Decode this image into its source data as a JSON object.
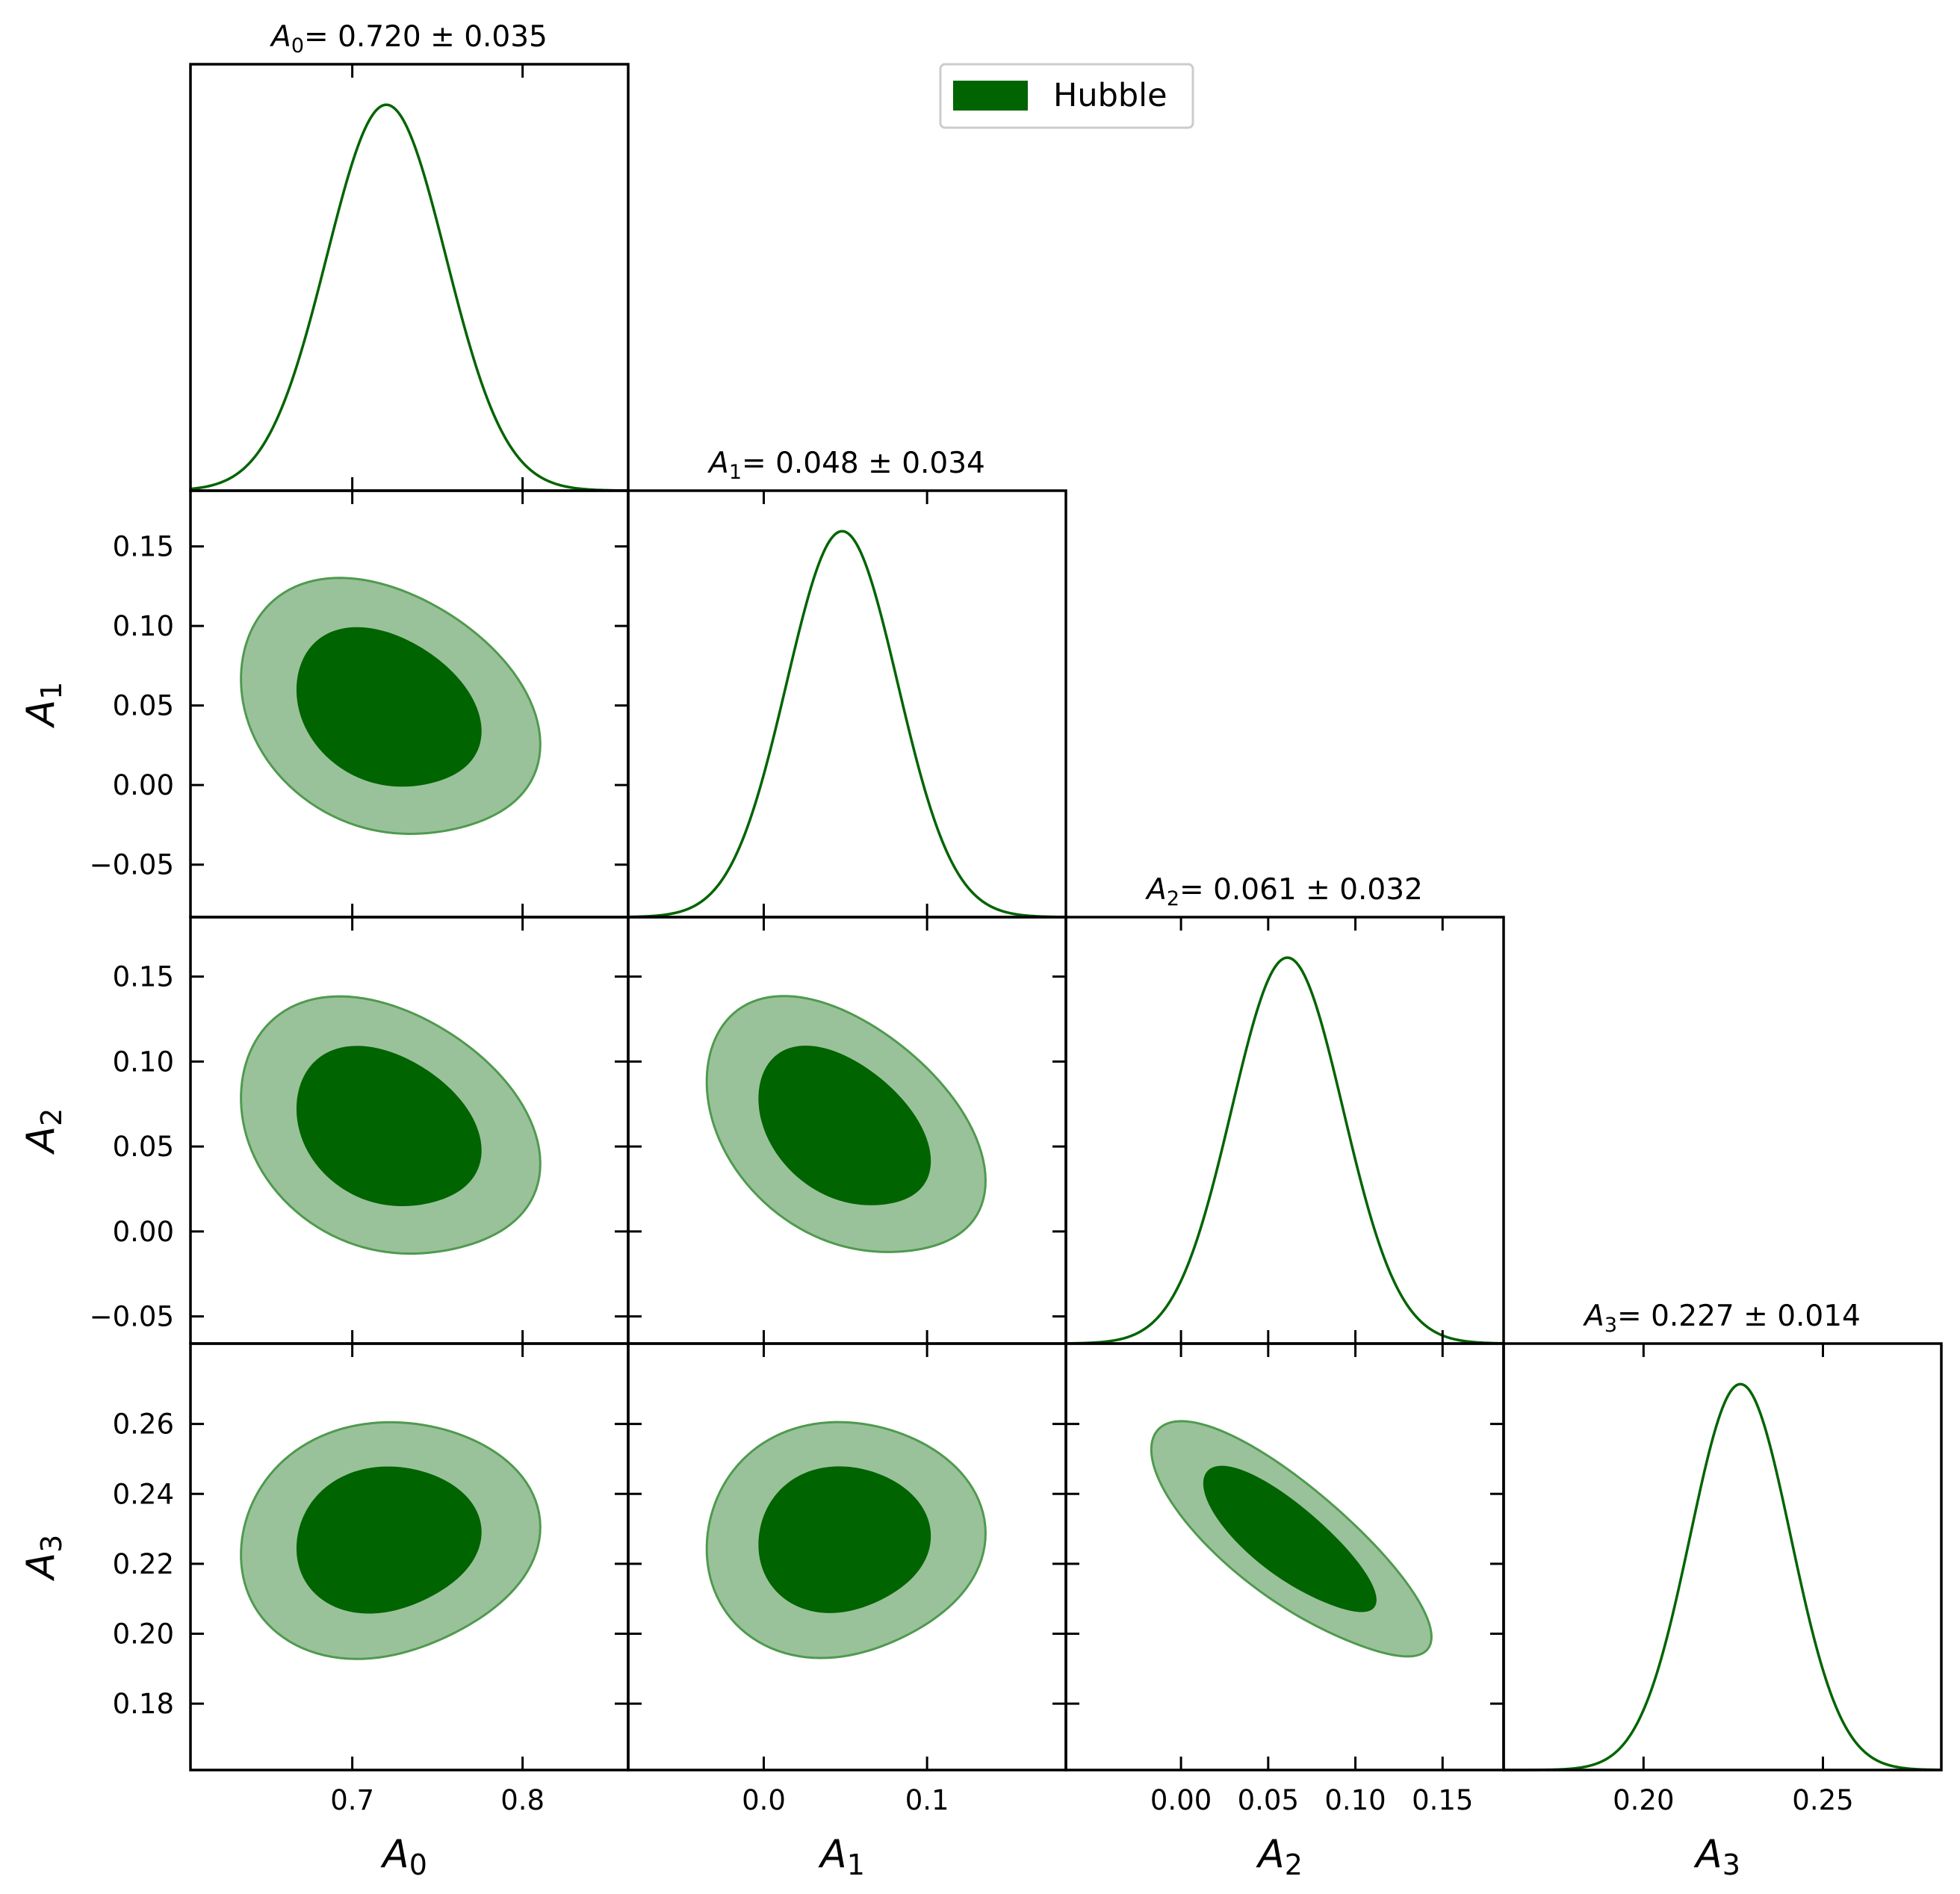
{
  "chart_data": {
    "type": "corner",
    "legend": {
      "label": "Hubble",
      "placement": "top-right",
      "fill_color": "#006400"
    },
    "colors": {
      "line": "#006400",
      "inner_fill": "#006400",
      "outer_fill": "#9ac29a",
      "contour_edge": "#4f9a4f",
      "frame": "#000000"
    },
    "parameters": [
      {
        "name": "A",
        "sub": "0",
        "mean": 0.72,
        "sigma": 0.035,
        "range": [
          0.605,
          0.862
        ],
        "ticks": [
          0.7,
          0.8
        ],
        "tick_labels": [
          "0.7",
          "0.8"
        ],
        "title_value": "= 0.720 ± 0.035"
      },
      {
        "name": "A",
        "sub": "1",
        "mean": 0.048,
        "sigma": 0.034,
        "range": [
          -0.083,
          0.185
        ],
        "ticks": [
          0.0,
          0.1
        ],
        "tick_labels": [
          "0.0",
          "0.1"
        ],
        "title_value": "= 0.048 ± 0.034"
      },
      {
        "name": "A",
        "sub": "2",
        "mean": 0.061,
        "sigma": 0.032,
        "range": [
          -0.066,
          0.185
        ],
        "ticks": [
          0.0,
          0.05,
          0.1,
          0.15
        ],
        "tick_labels": [
          "0.00",
          "0.05",
          "0.10",
          "0.15"
        ],
        "title_value": "= 0.061 ± 0.032"
      },
      {
        "name": "A",
        "sub": "3",
        "mean": 0.227,
        "sigma": 0.014,
        "range": [
          0.161,
          0.283
        ],
        "ticks": [
          0.2,
          0.25
        ],
        "tick_labels": [
          "0.20",
          "0.25"
        ],
        "title_value": "= 0.227 ± 0.014"
      }
    ],
    "y_ticks": {
      "1": {
        "ticks": [
          0.15,
          0.1,
          0.05,
          0.0,
          -0.05
        ],
        "labels": [
          "0.15",
          "0.10",
          "0.05",
          "0.00",
          "−0.05"
        ]
      },
      "2": {
        "ticks": [
          0.15,
          0.1,
          0.05,
          0.0,
          -0.05
        ],
        "labels": [
          "0.15",
          "0.10",
          "0.05",
          "0.00",
          "−0.05"
        ]
      },
      "3": {
        "ticks": [
          0.26,
          0.24,
          0.22,
          0.2,
          0.18
        ],
        "labels": [
          "0.26",
          "0.24",
          "0.22",
          "0.20",
          "0.18"
        ]
      }
    },
    "pairs": [
      {
        "x": 0,
        "y": 1,
        "corr": -0.3,
        "y_range": [
          -0.083,
          0.185
        ]
      },
      {
        "x": 0,
        "y": 2,
        "corr": -0.3,
        "y_range": [
          -0.066,
          0.185
        ]
      },
      {
        "x": 1,
        "y": 2,
        "corr": -0.42,
        "y_range": [
          -0.066,
          0.185
        ]
      },
      {
        "x": 0,
        "y": 3,
        "corr": 0.05,
        "y_range": [
          0.161,
          0.283
        ]
      },
      {
        "x": 1,
        "y": 3,
        "corr": 0.0,
        "y_range": [
          0.161,
          0.283
        ]
      },
      {
        "x": 2,
        "y": 3,
        "corr": -0.8,
        "y_range": [
          0.161,
          0.283
        ]
      }
    ],
    "contour_levels": [
      "68%",
      "95%"
    ]
  }
}
